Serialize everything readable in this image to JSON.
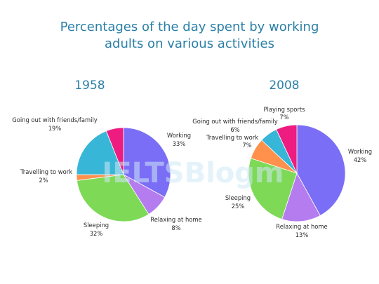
{
  "chart_data": {
    "type": "pie",
    "title_lines": [
      "Percentages of the day spent by working",
      "adults on various activities"
    ],
    "watermark": "IELTSBlogm",
    "charts": [
      {
        "subtitle": "1958",
        "slices": [
          {
            "name": "Working",
            "value": 33,
            "value_label": "33%",
            "color": "#7b6ef6"
          },
          {
            "name": "Relaxing at home",
            "value": 8,
            "value_label": "8%",
            "color": "#b57cf0"
          },
          {
            "name": "Sleeping",
            "value": 32,
            "value_label": "32%",
            "color": "#7ed957"
          },
          {
            "name": "Travelling to work",
            "value": 2,
            "value_label": "2%",
            "color": "#ff914d"
          },
          {
            "name": "Going out with friends/family",
            "value": 19,
            "value_label": "19%",
            "color": "#38b6d8"
          },
          {
            "name": "",
            "value": 6,
            "value_label": "",
            "color": "#ee1c80"
          }
        ]
      },
      {
        "subtitle": "2008",
        "slices": [
          {
            "name": "Working",
            "value": 42,
            "value_label": "42%",
            "color": "#7b6ef6"
          },
          {
            "name": "Relaxing at home",
            "value": 13,
            "value_label": "13%",
            "color": "#b57cf0"
          },
          {
            "name": "Sleeping",
            "value": 25,
            "value_label": "25%",
            "color": "#7ed957"
          },
          {
            "name": "Travelling to work",
            "value": 7,
            "value_label": "7%",
            "color": "#ff914d"
          },
          {
            "name": "Going out with friends/family",
            "value": 6,
            "value_label": "6%",
            "color": "#38b6d8"
          },
          {
            "name": "Playing sports",
            "value": 7,
            "value_label": "7%",
            "color": "#ee1c80"
          }
        ]
      }
    ]
  }
}
